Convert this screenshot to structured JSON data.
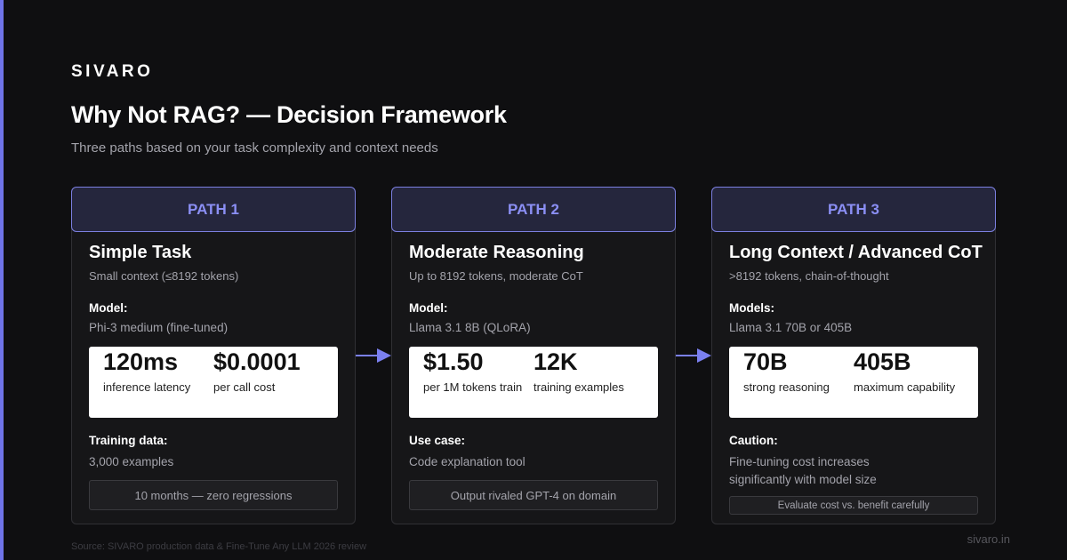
{
  "header": {
    "brand": "SIVARO",
    "title": "Why Not RAG? — Decision Framework",
    "subtitle": "Three paths based on your task complexity and context needs"
  },
  "paths": [
    {
      "label": "PATH 1",
      "title": "Simple Task",
      "subtitle": "Small context (≤8192 tokens)",
      "model_label": "Model:",
      "model": "Phi-3 medium (fine-tuned)",
      "stats": [
        {
          "value": "120ms",
          "label": "inference latency"
        },
        {
          "value": "$0.0001",
          "label": "per call cost"
        }
      ],
      "section_label": "Training data:",
      "section_text": "3,000 examples",
      "note": "10 months — zero regressions"
    },
    {
      "label": "PATH 2",
      "title": "Moderate Reasoning",
      "subtitle": "Up to 8192 tokens, moderate CoT",
      "model_label": "Model:",
      "model": "Llama 3.1 8B (QLoRA)",
      "stats": [
        {
          "value": "$1.50",
          "label": "per 1M tokens train"
        },
        {
          "value": "12K",
          "label": "training examples"
        }
      ],
      "section_label": "Use case:",
      "section_text": "Code explanation tool",
      "note": "Output rivaled GPT-4 on domain"
    },
    {
      "label": "PATH 3",
      "title": "Long Context / Advanced CoT",
      "subtitle": ">8192 tokens, chain-of-thought",
      "model_label": "Models:",
      "model": "Llama 3.1 70B or 405B",
      "stats": [
        {
          "value": "70B",
          "label": "strong reasoning"
        },
        {
          "value": "405B",
          "label": "maximum capability"
        }
      ],
      "section_label": "Caution:",
      "section_text": "Fine-tuning cost increases significantly with model size",
      "note": "Evaluate cost vs. benefit carefully"
    }
  ],
  "footer": {
    "source": "Source: SIVARO production data & Fine-Tune Any LLM 2026 review",
    "url": "sivaro.in"
  }
}
